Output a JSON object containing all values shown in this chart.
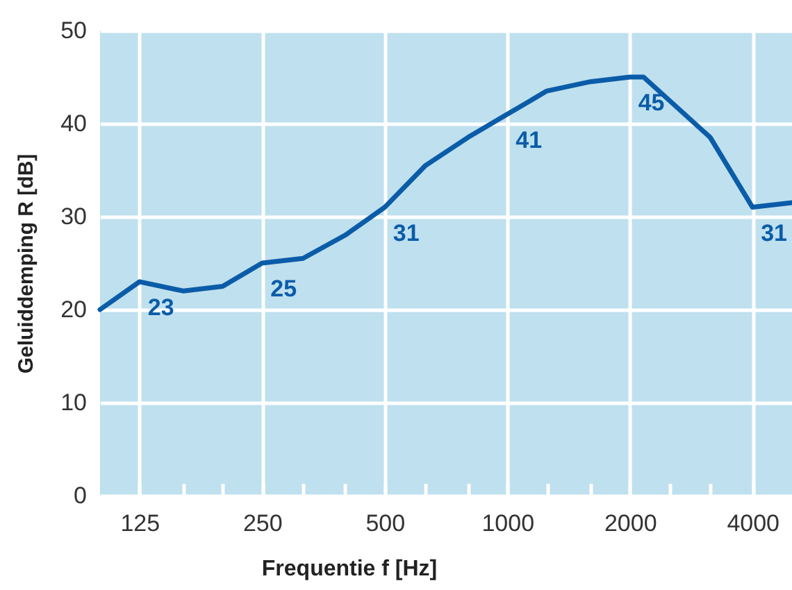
{
  "chart_data": {
    "type": "line",
    "xlabel": "Frequentie f [Hz]",
    "ylabel": "Geluiddemping R [dB]",
    "log": "x",
    "x": [
      100,
      125,
      160,
      200,
      250,
      315,
      400,
      500,
      630,
      800,
      1000,
      1250,
      1600,
      2000,
      2160,
      3150,
      4000,
      5000
    ],
    "series": [
      {
        "color": "#0b5ca8",
        "values": [
          20,
          23,
          22,
          22.5,
          25,
          25.5,
          28,
          31,
          35.5,
          38.5,
          41,
          43.5,
          44.5,
          45,
          45,
          38.5,
          31,
          31.5
        ],
        "value_labels": [
          null,
          "23",
          null,
          null,
          "25",
          null,
          null,
          "31",
          null,
          null,
          "41",
          null,
          null,
          "45",
          null,
          null,
          "31",
          null
        ]
      }
    ],
    "xlim": [
      100,
      5000
    ],
    "ylim": [
      0,
      50
    ],
    "xticks": [
      125,
      {
        "value": 160,
        "label": null
      },
      {
        "value": 200,
        "label": null
      },
      250,
      {
        "value": 315,
        "label": null
      },
      {
        "value": 400,
        "label": null
      },
      500,
      {
        "value": 630,
        "label": null
      },
      {
        "value": 800,
        "label": null
      },
      1000,
      {
        "value": 1250,
        "label": null
      },
      {
        "value": 1600,
        "label": null
      },
      2000,
      {
        "value": 2500,
        "label": null
      },
      {
        "value": 3150,
        "label": null
      },
      4000
    ],
    "yticks": [
      0,
      10,
      20,
      30,
      40,
      50
    ],
    "grid": true,
    "line_style": "solid"
  }
}
